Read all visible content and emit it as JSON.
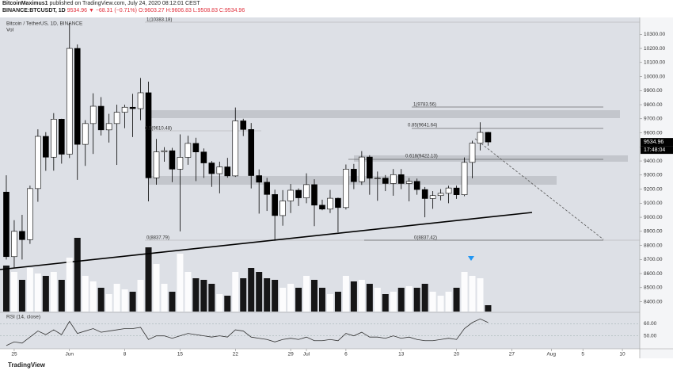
{
  "header": {
    "author": "BitcoinMaximus1",
    "published": "published on TradingView.com, July 24, 2020 08:12:01 CEST",
    "symbol": "BINANCE:BTCUSDT, 1D",
    "change": "▼ −68.31 (−0.71%)",
    "ohlc": "O:9603.27 H:9606.83 L:9508.83 C:9534.96"
  },
  "footer": "TradingView",
  "chart_data": {
    "type": "candlestick",
    "title": "Bitcoin / TetherUS, 1D, BINANCE",
    "x": [
      "2020-05-24",
      "2020-05-25",
      "2020-05-26",
      "2020-05-27",
      "2020-05-28",
      "2020-05-29",
      "2020-05-30",
      "2020-05-31",
      "2020-06-01",
      "2020-06-02",
      "2020-06-03",
      "2020-06-04",
      "2020-06-05",
      "2020-06-06",
      "2020-06-07",
      "2020-06-08",
      "2020-06-09",
      "2020-06-10",
      "2020-06-11",
      "2020-06-12",
      "2020-06-13",
      "2020-06-14",
      "2020-06-15",
      "2020-06-16",
      "2020-06-17",
      "2020-06-18",
      "2020-06-19",
      "2020-06-20",
      "2020-06-21",
      "2020-06-22",
      "2020-06-23",
      "2020-06-24",
      "2020-06-25",
      "2020-06-26",
      "2020-06-27",
      "2020-06-28",
      "2020-06-29",
      "2020-06-30",
      "2020-07-01",
      "2020-07-02",
      "2020-07-03",
      "2020-07-04",
      "2020-07-05",
      "2020-07-06",
      "2020-07-07",
      "2020-07-08",
      "2020-07-09",
      "2020-07-10",
      "2020-07-11",
      "2020-07-12",
      "2020-07-13",
      "2020-07-14",
      "2020-07-15",
      "2020-07-16",
      "2020-07-17",
      "2020-07-18",
      "2020-07-19",
      "2020-07-20",
      "2020-07-21",
      "2020-07-22",
      "2020-07-23",
      "2020-07-24"
    ],
    "open": [
      9179,
      8720,
      8900,
      8841,
      9204,
      9575,
      9427,
      9697,
      9448,
      10200,
      9518,
      9666,
      9789,
      9621,
      9666,
      9746,
      9782,
      9772,
      9885,
      9280,
      9465,
      9473,
      9342,
      9426,
      9525,
      9464,
      9386,
      9310,
      9358,
      9294,
      9685,
      9624,
      9296,
      9249,
      9162,
      9012,
      9116,
      9192,
      9138,
      9232,
      9086,
      9058,
      9135,
      9069,
      9342,
      9253,
      9428,
      9277,
      9278,
      9240,
      9303,
      9240,
      9255,
      9197,
      9133,
      9154,
      9170,
      9208,
      9160,
      9390,
      9526,
      9603.27
    ],
    "high": [
      9298,
      8979,
      9017,
      9225,
      9625,
      9605,
      9740,
      9700,
      10380,
      10228,
      9690,
      9881,
      9854,
      9735,
      9800,
      9800,
      9877,
      9990,
      9964,
      9557,
      9498,
      9493,
      9589,
      9579,
      9565,
      9489,
      9400,
      9395,
      9422,
      9780,
      9700,
      9670,
      9340,
      9280,
      9196,
      9193,
      9236,
      9205,
      9312,
      9270,
      9125,
      9195,
      9140,
      9375,
      9379,
      9470,
      9441,
      9325,
      9300,
      9343,
      9343,
      9279,
      9275,
      9215,
      9186,
      9200,
      9224,
      9225,
      9425,
      9544,
      9675,
      9606.83
    ],
    "low": [
      8700,
      8642,
      8700,
      8811,
      9110,
      9330,
      9331,
      9381,
      9421,
      9266,
      9365,
      9450,
      9581,
      9531,
      9372,
      9633,
      9570,
      9690,
      9113,
      9231,
      9395,
      9250,
      8900,
      9373,
      9257,
      9280,
      9216,
      9170,
      9281,
      9287,
      9577,
      9205,
      9026,
      9045,
      8833,
      8940,
      9030,
      9080,
      9100,
      8937,
      9050,
      9030,
      8893,
      9055,
      9200,
      9230,
      9160,
      9117,
      9186,
      9153,
      9200,
      9113,
      9160,
      9000,
      9060,
      9120,
      9100,
      9131,
      9150,
      9277,
      9475,
      9508.83
    ],
    "close": [
      8720,
      8900,
      8841,
      9204,
      9575,
      9427,
      9697,
      9448,
      10200,
      9518,
      9666,
      9789,
      9621,
      9666,
      9746,
      9782,
      9772,
      9885,
      9280,
      9465,
      9473,
      9342,
      9426,
      9525,
      9464,
      9386,
      9310,
      9358,
      9294,
      9685,
      9624,
      9296,
      9249,
      9162,
      9012,
      9116,
      9192,
      9138,
      9232,
      9086,
      9058,
      9135,
      9069,
      9342,
      9253,
      9428,
      9277,
      9278,
      9240,
      9303,
      9240,
      9255,
      9197,
      9133,
      9154,
      9170,
      9208,
      9160,
      9390,
      9526,
      9603,
      9534.96
    ],
    "up_color": "#ffffff",
    "down_color": "#000000",
    "xlim": [
      "2020-05-23",
      "2020-08-12"
    ],
    "xticks": [
      {
        "value": "2020-05-25",
        "label": "25"
      },
      {
        "value": "2020-06-01",
        "label": "Jun"
      },
      {
        "value": "2020-06-08",
        "label": "8"
      },
      {
        "value": "2020-06-15",
        "label": "15"
      },
      {
        "value": "2020-06-22",
        "label": "22"
      },
      {
        "value": "2020-06-29",
        "label": "29"
      },
      {
        "value": "2020-07-01",
        "label": "Jul"
      },
      {
        "value": "2020-07-06",
        "label": "6"
      },
      {
        "value": "2020-07-13",
        "label": "13"
      },
      {
        "value": "2020-07-20",
        "label": "20"
      },
      {
        "value": "2020-07-27",
        "label": "27"
      },
      {
        "value": "2020-08-01",
        "label": "Aug"
      },
      {
        "value": "2020-08-05",
        "label": "5"
      },
      {
        "value": "2020-08-10",
        "label": "10"
      }
    ],
    "ylim": [
      8330,
      10420
    ],
    "yticks": [
      {
        "value": 8400,
        "label": "8400.00"
      },
      {
        "value": 8500,
        "label": "8500.00"
      },
      {
        "value": 8600,
        "label": "8600.00"
      },
      {
        "value": 8700,
        "label": "8700.00"
      },
      {
        "value": 8800,
        "label": "8800.00"
      },
      {
        "value": 8900,
        "label": "8900.00"
      },
      {
        "value": 9000,
        "label": "9000.00"
      },
      {
        "value": 9100,
        "label": "9100.00"
      },
      {
        "value": 9200,
        "label": "9200.00"
      },
      {
        "value": 9300,
        "label": "9300.00"
      },
      {
        "value": 9400,
        "label": "9400.00"
      },
      {
        "value": 9500,
        "label": "9500.00"
      },
      {
        "value": 9600,
        "label": "9600.00"
      },
      {
        "value": 9700,
        "label": "9700.00"
      },
      {
        "value": 9800,
        "label": "9800.00"
      },
      {
        "value": 9900,
        "label": "9900.00"
      },
      {
        "value": 10000,
        "label": "10000.00"
      },
      {
        "value": 10100,
        "label": "10100.00"
      },
      {
        "value": 10200,
        "label": "10200.00"
      },
      {
        "value": 10300,
        "label": "10300.00"
      }
    ],
    "grid": false,
    "countdown": "17:48:04",
    "annotations": [
      {
        "text": "1(10383.18)"
      },
      {
        "text": "0.5(9610.48)"
      },
      {
        "text": "0(8837.79)"
      },
      {
        "text": "1(9783.56)"
      },
      {
        "text": "0.85(9641.64)"
      },
      {
        "text": "0.618(9422.13)"
      },
      {
        "text": "0(8837.42)"
      }
    ],
    "volume": {
      "title": "Vol",
      "vlim": [
        0,
        100
      ],
      "values": [
        58,
        50,
        40,
        55,
        48,
        45,
        50,
        40,
        68,
        93,
        45,
        38,
        30,
        22,
        35,
        28,
        25,
        40,
        81,
        60,
        35,
        25,
        73,
        50,
        42,
        40,
        35,
        22,
        20,
        50,
        42,
        55,
        50,
        42,
        40,
        30,
        35,
        30,
        45,
        40,
        30,
        22,
        25,
        45,
        38,
        40,
        35,
        30,
        22,
        25,
        30,
        32,
        30,
        35,
        25,
        20,
        25,
        30,
        50,
        45,
        42,
        8
      ]
    },
    "rsi": {
      "title": "RSI (14, close)",
      "color": "#333333",
      "ylim": [
        40.6,
        68.8
      ],
      "yticks": [
        {
          "value": 50,
          "label": "50.00"
        },
        {
          "value": 60,
          "label": "60.00"
        }
      ],
      "values": [
        42,
        45,
        44,
        49,
        54,
        51,
        55,
        51,
        62,
        52,
        54,
        56,
        53,
        54,
        55,
        56,
        56,
        57,
        47,
        50,
        50,
        48,
        50,
        52,
        51,
        50,
        49,
        50,
        49,
        55,
        54,
        49,
        48,
        47,
        45,
        47,
        48,
        47,
        49,
        46,
        46,
        47,
        46,
        52,
        50,
        53,
        49,
        49,
        48,
        50,
        48,
        49,
        47,
        46,
        46,
        47,
        48,
        47,
        56,
        61,
        64,
        61
      ]
    }
  }
}
